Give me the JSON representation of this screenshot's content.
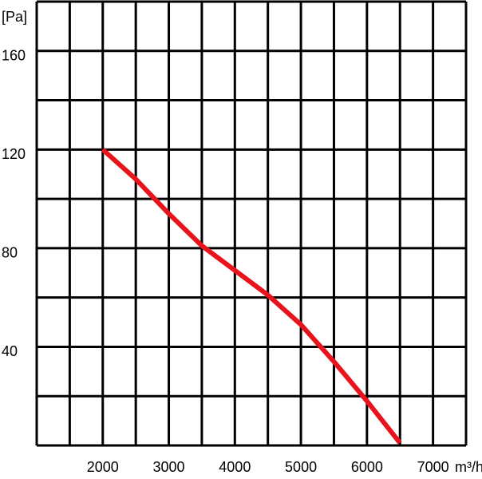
{
  "chart_data": {
    "type": "line",
    "y_label": "[Pa]",
    "x_label": "m³/h",
    "x": [
      2000,
      2500,
      3000,
      3500,
      4000,
      4500,
      5000,
      5500,
      6000,
      6500
    ],
    "series": [
      {
        "name": null,
        "color": "#e8141c",
        "values": [
          120,
          108,
          94,
          81,
          71,
          61,
          49,
          34,
          18,
          1
        ]
      }
    ],
    "xlim": [
      1000,
      7500
    ],
    "ylim": [
      0,
      180
    ],
    "xticks": [
      2000,
      3000,
      4000,
      5000,
      6000,
      7000
    ],
    "yticks": [
      40,
      80,
      120,
      160
    ],
    "xgrid": [
      1000,
      1500,
      2000,
      2500,
      3000,
      3500,
      4000,
      4500,
      5000,
      5500,
      6000,
      6500,
      7000,
      7500
    ],
    "ygrid": [
      0,
      20,
      40,
      60,
      80,
      100,
      120,
      140,
      160,
      180
    ],
    "grid": true
  }
}
